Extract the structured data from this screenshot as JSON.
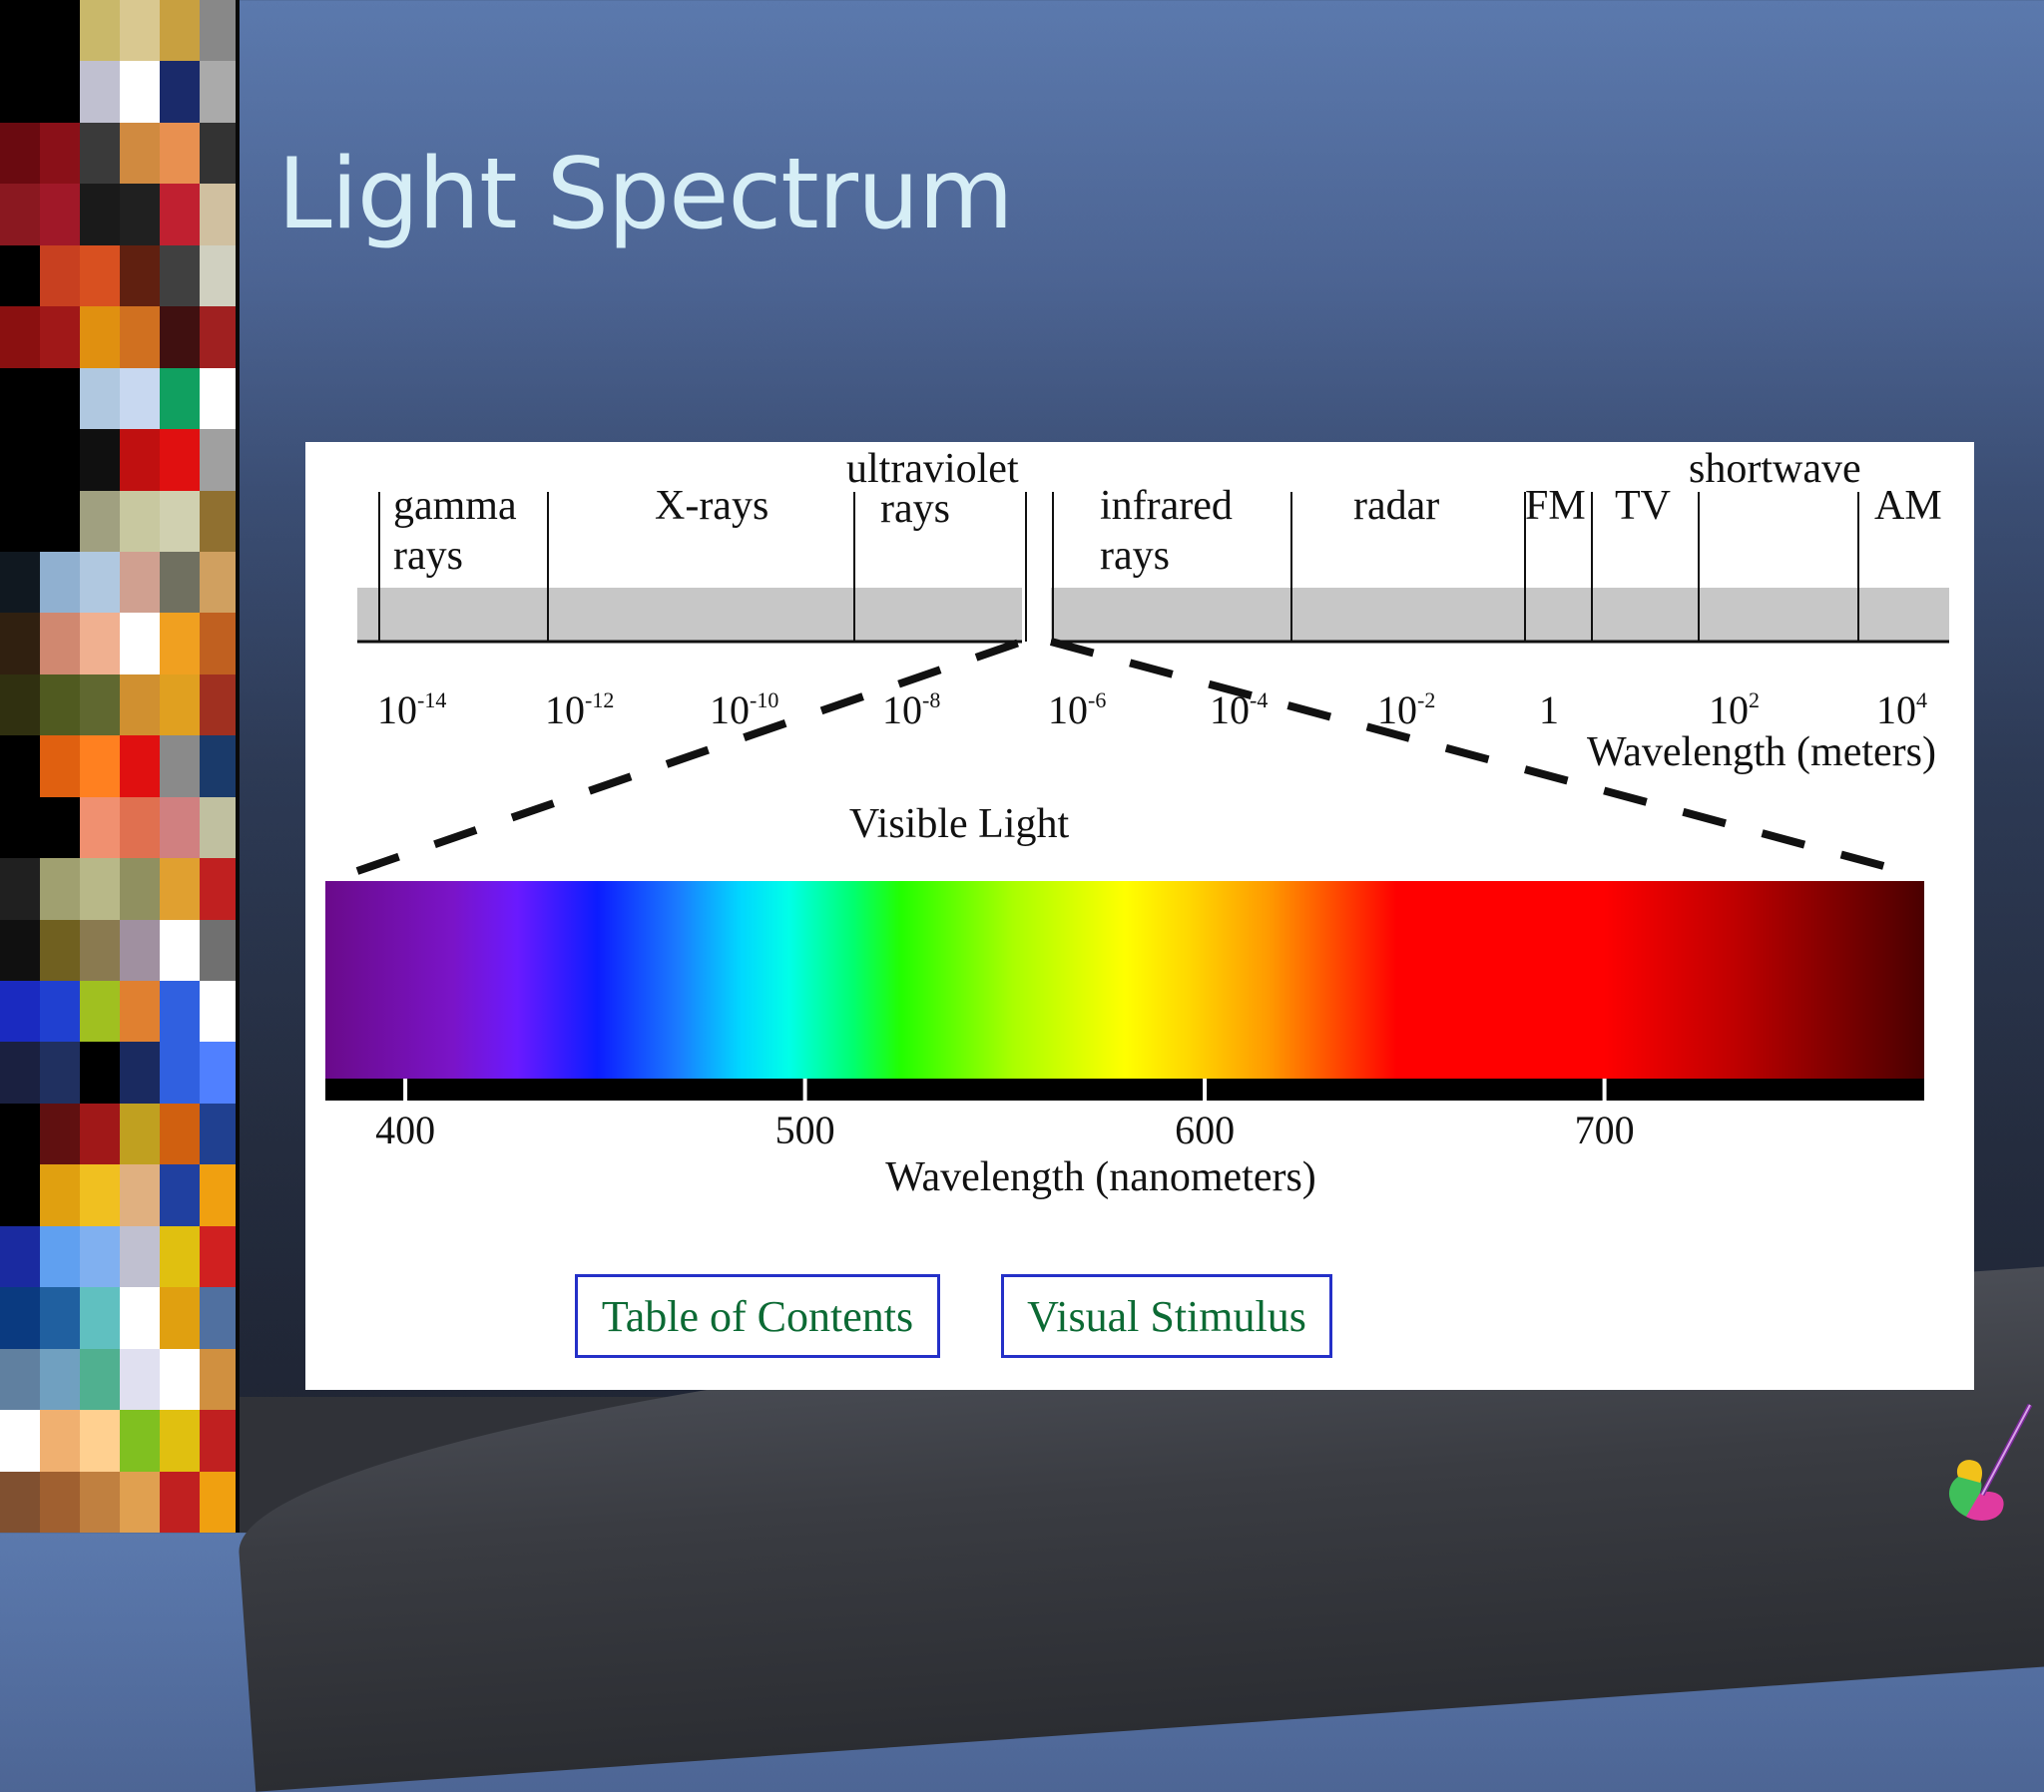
{
  "slide": {
    "title": "Light Spectrum"
  },
  "diagram": {
    "em_regions": [
      {
        "id": "gamma",
        "lines": [
          "gamma",
          "rays"
        ]
      },
      {
        "id": "xrays",
        "lines": [
          "X-rays"
        ]
      },
      {
        "id": "uv",
        "lines": [
          "ultraviolet",
          "rays"
        ]
      },
      {
        "id": "infrared",
        "lines": [
          "infrared",
          "rays"
        ]
      },
      {
        "id": "radar",
        "lines": [
          "radar"
        ]
      },
      {
        "id": "fm",
        "lines": [
          "FM"
        ]
      },
      {
        "id": "tv",
        "lines": [
          "TV"
        ]
      },
      {
        "id": "shortwave",
        "lines": [
          "shortwave"
        ]
      },
      {
        "id": "am",
        "lines": [
          "AM"
        ]
      }
    ],
    "em_ticks": [
      {
        "base": "10",
        "exp": "-14"
      },
      {
        "base": "10",
        "exp": "-12"
      },
      {
        "base": "10",
        "exp": "-10"
      },
      {
        "base": "10",
        "exp": "-8"
      },
      {
        "base": "10",
        "exp": "-6"
      },
      {
        "base": "10",
        "exp": "-4"
      },
      {
        "base": "10",
        "exp": "-2"
      },
      {
        "base": "1",
        "exp": ""
      },
      {
        "base": "10",
        "exp": "2"
      },
      {
        "base": "10",
        "exp": "4"
      }
    ],
    "em_axis_label": "Wavelength (meters)",
    "visible_label": "Visible Light",
    "visible_ticks": [
      "400",
      "500",
      "600",
      "700"
    ],
    "visible_tick_values": [
      400,
      500,
      600,
      700
    ],
    "visible_range_nm": [
      380,
      780
    ],
    "visible_axis_label": "Wavelength (nanometers)"
  },
  "buttons": {
    "table_of_contents": "Table of Contents",
    "visual_stimulus": "Visual Stimulus"
  }
}
